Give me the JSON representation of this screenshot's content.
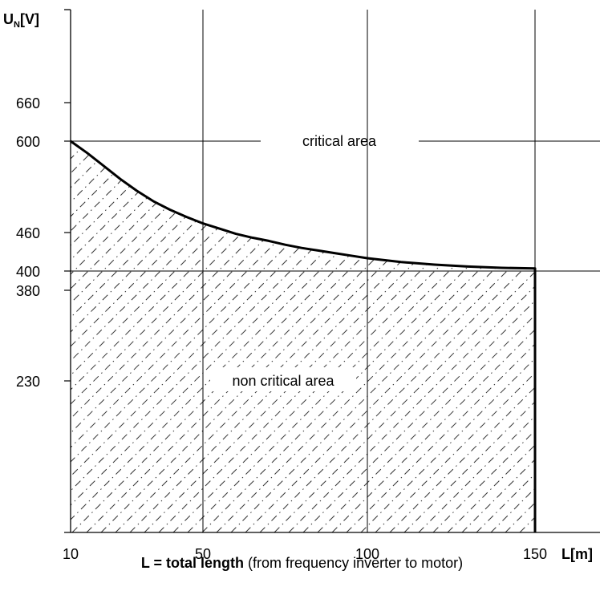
{
  "chart_data": {
    "type": "area",
    "y_axis_title": {
      "main": "U",
      "sub": "N",
      "unit": "[V]"
    },
    "x_axis_title": "L[m]",
    "x_ticks": [
      10,
      50,
      100,
      150
    ],
    "y_ticks": [
      230,
      380,
      400,
      460,
      600,
      660
    ],
    "x_gridlines": [
      50,
      100,
      150
    ],
    "y_gridlines": [
      400,
      600
    ],
    "series": [
      {
        "x": [
          10,
          15,
          20,
          25,
          30,
          35,
          40,
          45,
          50,
          55,
          60,
          65,
          70,
          75,
          80,
          85,
          90,
          95,
          100,
          110,
          120,
          130,
          140,
          150
        ],
        "y": [
          600,
          582,
          562,
          542,
          524,
          508,
          495,
          484,
          474,
          466,
          458,
          452,
          447,
          441,
          436,
          432,
          428,
          424,
          420,
          414,
          410,
          407,
          405,
          404
        ]
      }
    ],
    "x_end": 150,
    "annotations": {
      "critical": "critical area",
      "non_critical": "non critical area"
    }
  },
  "caption": {
    "bold": "L = total length",
    "rest": " (from frequency inverter to motor)"
  }
}
